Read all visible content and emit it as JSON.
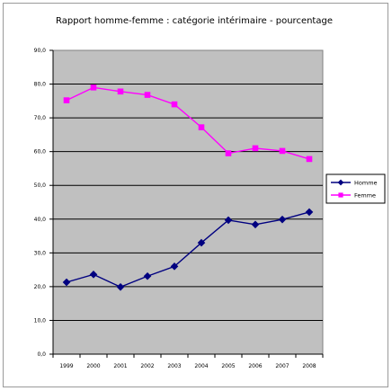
{
  "chart_data": {
    "type": "line",
    "title": "Rapport homme-femme  : catégorie intérimaire - pourcentage",
    "xlabel": "",
    "ylabel": "",
    "categories": [
      "1999",
      "2000",
      "2001",
      "2002",
      "2003",
      "2004",
      "2005",
      "2006",
      "2007",
      "2008"
    ],
    "ylim": [
      0,
      90
    ],
    "yticks": [
      "0,0",
      "10,0",
      "20,0",
      "30,0",
      "40,0",
      "50,0",
      "60,0",
      "70,0",
      "80,0",
      "90,0"
    ],
    "grid": true,
    "legend_position": "right",
    "plot_background": "#c0c0c0",
    "series": [
      {
        "name": "Homme",
        "color": "#000080",
        "marker": "diamond",
        "values": [
          21.3,
          23.6,
          19.9,
          23.1,
          26.0,
          33.0,
          39.7,
          38.4,
          39.9,
          42.1
        ]
      },
      {
        "name": "Femme",
        "color": "#ff00ff",
        "marker": "square",
        "values": [
          75.2,
          79.0,
          77.8,
          76.8,
          74.0,
          67.2,
          59.5,
          61.0,
          60.2,
          57.8
        ]
      }
    ]
  }
}
